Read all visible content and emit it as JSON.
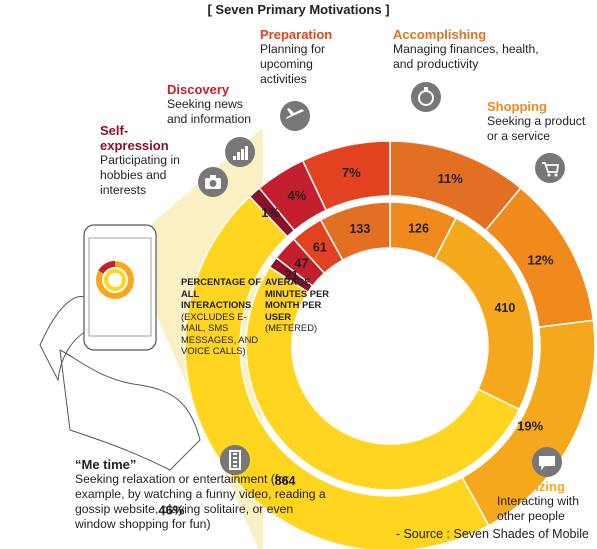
{
  "title": "[ Seven  Primary  Motivations ]",
  "source": "- Source : Seven Shades of Mobile",
  "outer_label": {
    "main": "PERCENTAGE OF ALL INTERACTIONS",
    "sub": "(EXCLUDES E-MAIL, SMS MESSAGES, AND VOICE CALLS)"
  },
  "inner_label": {
    "main": "AVERAGE MINUTES PER MONTH PER USER",
    "sub": "(METERED)"
  },
  "categories": [
    {
      "name": "Accomplishing",
      "desc": "Managing finances, health, and productivity",
      "color": "#E36F22",
      "icon": "stopwatch-icon"
    },
    {
      "name": "Shopping",
      "desc": "Seeking a product or a service",
      "color": "#F08A1D",
      "icon": "shopping-cart-icon"
    },
    {
      "name": "Socializing",
      "desc": "Interacting with other people",
      "color": "#F6A81C",
      "icon": "chat-bubble-icon"
    },
    {
      "name": "“Me time”",
      "desc": "Seeking relaxation or entertainment (for example, by watching a funny video, reading a gossip website, playing solitaire, or even window shopping for fun)",
      "color": "#FFD51F",
      "icon": "film-strip-icon"
    },
    {
      "name": "Self-expression",
      "desc": "Participating in hobbies and interests",
      "color": "#8B1027",
      "icon": "camera-icon"
    },
    {
      "name": "Discovery",
      "desc": "Seeking news and information",
      "color": "#C41F2E",
      "icon": "bar-chart-icon"
    },
    {
      "name": "Preparation",
      "desc": "Planning for upcoming activities",
      "color": "#E2421F",
      "icon": "airplane-icon"
    }
  ],
  "chart_data": {
    "type": "pie",
    "series": [
      {
        "name": "PERCENTAGE OF ALL INTERACTIONS",
        "values": [
          11,
          12,
          19,
          46,
          1,
          4,
          7
        ],
        "labels": [
          "11%",
          "12%",
          "19%",
          "46%",
          "1%",
          "4%",
          "7%"
        ]
      },
      {
        "name": "AVERAGE MINUTES PER MONTH PER USER",
        "values": [
          126,
          410,
          864,
          21,
          47,
          61,
          133
        ],
        "labels": [
          "126",
          "410",
          "864",
          "21",
          "47",
          "61",
          "133"
        ],
        "note": "inner ring order: Shopping, Socializing, Me time, Self-expression, Discovery, Preparation, Accomplishing"
      }
    ],
    "categories": [
      "Accomplishing",
      "Shopping",
      "Socializing",
      "Me time",
      "Self-expression",
      "Discovery",
      "Preparation"
    ]
  }
}
